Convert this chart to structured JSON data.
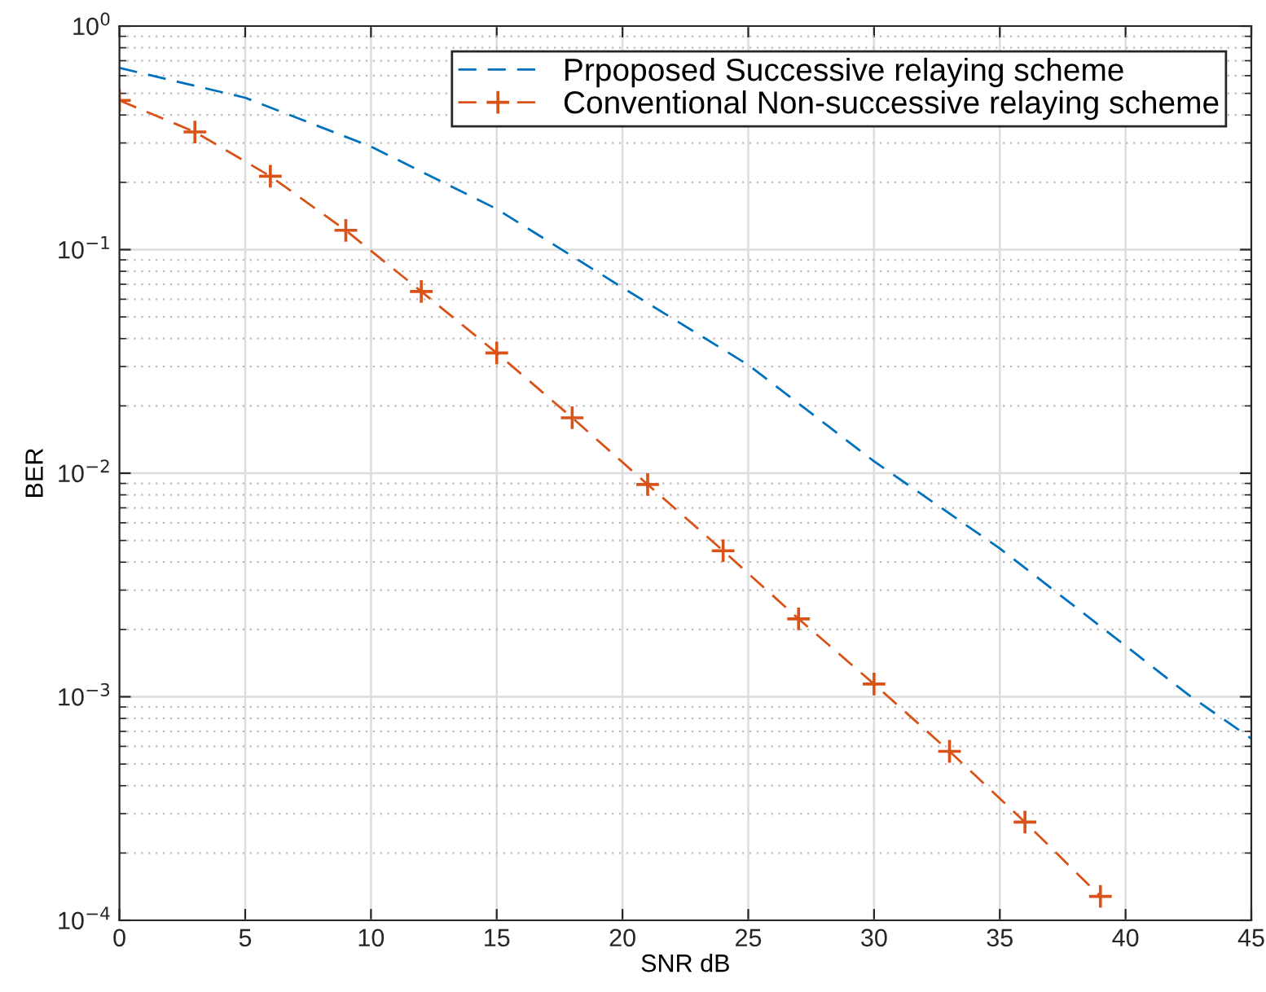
{
  "chart_data": {
    "type": "line",
    "xlabel": "SNR dB",
    "ylabel": "BER",
    "log": "y",
    "grid": true,
    "legend": "top right",
    "xlim": [
      0,
      45
    ],
    "xticks": [
      0,
      5,
      10,
      15,
      20,
      25,
      30,
      35,
      40,
      45
    ],
    "ylim": [
      0.0001,
      1
    ],
    "yticks": [
      {
        "value": 0.0001,
        "label": "10$^{−4}$"
      },
      {
        "value": 0.001,
        "label": "10$^{−3}$"
      },
      {
        "value": 0.01,
        "label": "10$^{−2}$"
      },
      {
        "value": 0.1,
        "label": "10$^{−1}$"
      },
      {
        "value": 1,
        "label": "10$^{0}$"
      }
    ],
    "series": [
      {
        "name": "Prpoposed Successive relaying scheme",
        "color": "#0072bd",
        "line_style": "dashed",
        "marker": "none",
        "x": [
          0,
          5,
          10,
          15,
          20,
          25,
          30,
          35,
          40,
          42.5,
          45
        ],
        "values": [
          0.65,
          0.478,
          0.289,
          0.152,
          0.0676,
          0.0305,
          0.0113,
          0.00461,
          0.00169,
          0.00102,
          0.00065
        ]
      },
      {
        "name": "Conventional Non-successive relaying scheme",
        "color": "#d95319",
        "line_style": "dashed",
        "marker": "cross",
        "x": [
          0,
          3,
          6,
          9,
          12,
          15,
          18,
          21,
          24,
          27,
          30,
          33,
          36,
          39
        ],
        "values": [
          0.465,
          0.336,
          0.213,
          0.122,
          0.065,
          0.0345,
          0.0177,
          0.0089,
          0.0045,
          0.00223,
          0.00114,
          0.00057,
          0.000275,
          0.000128
        ]
      }
    ]
  }
}
